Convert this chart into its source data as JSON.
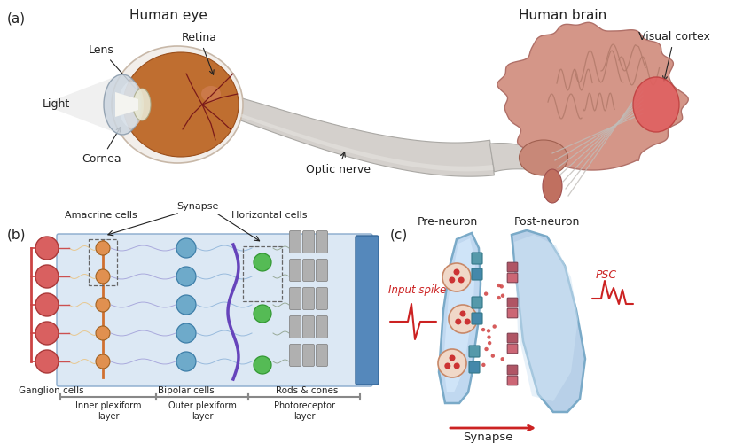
{
  "bg_color": "#ffffff",
  "panel_a": {
    "label": "(a)",
    "eye_title": "Human eye",
    "brain_title": "Human brain",
    "eye_labels": [
      "Lens",
      "Retina",
      "Light",
      "Cornea",
      "Optic nerve"
    ],
    "brain_labels": [
      "Visual cortex"
    ]
  },
  "panel_b": {
    "label": "(b)",
    "title_labels": [
      "Synapse",
      "Amacrine cells",
      "Horizontal cells"
    ],
    "bottom_labels": [
      "Ganglion cells",
      "Bipolar cells",
      "Rods & cones"
    ],
    "layer_labels": [
      "Inner plexiform\nlayer",
      "Outer plexiform\nlayer",
      "Photoreceptor\nlayer"
    ]
  },
  "panel_c": {
    "label": "(c)",
    "pre_label": "Pre-neuron",
    "post_label": "Post-neuron",
    "input_label": "Input spike",
    "psc_label": "PSC",
    "synapse_label": "Synapse"
  },
  "text_color": "#222222",
  "red_color": "#cc2222",
  "font_size_title": 11,
  "font_size_label": 9,
  "font_size_panel": 11
}
